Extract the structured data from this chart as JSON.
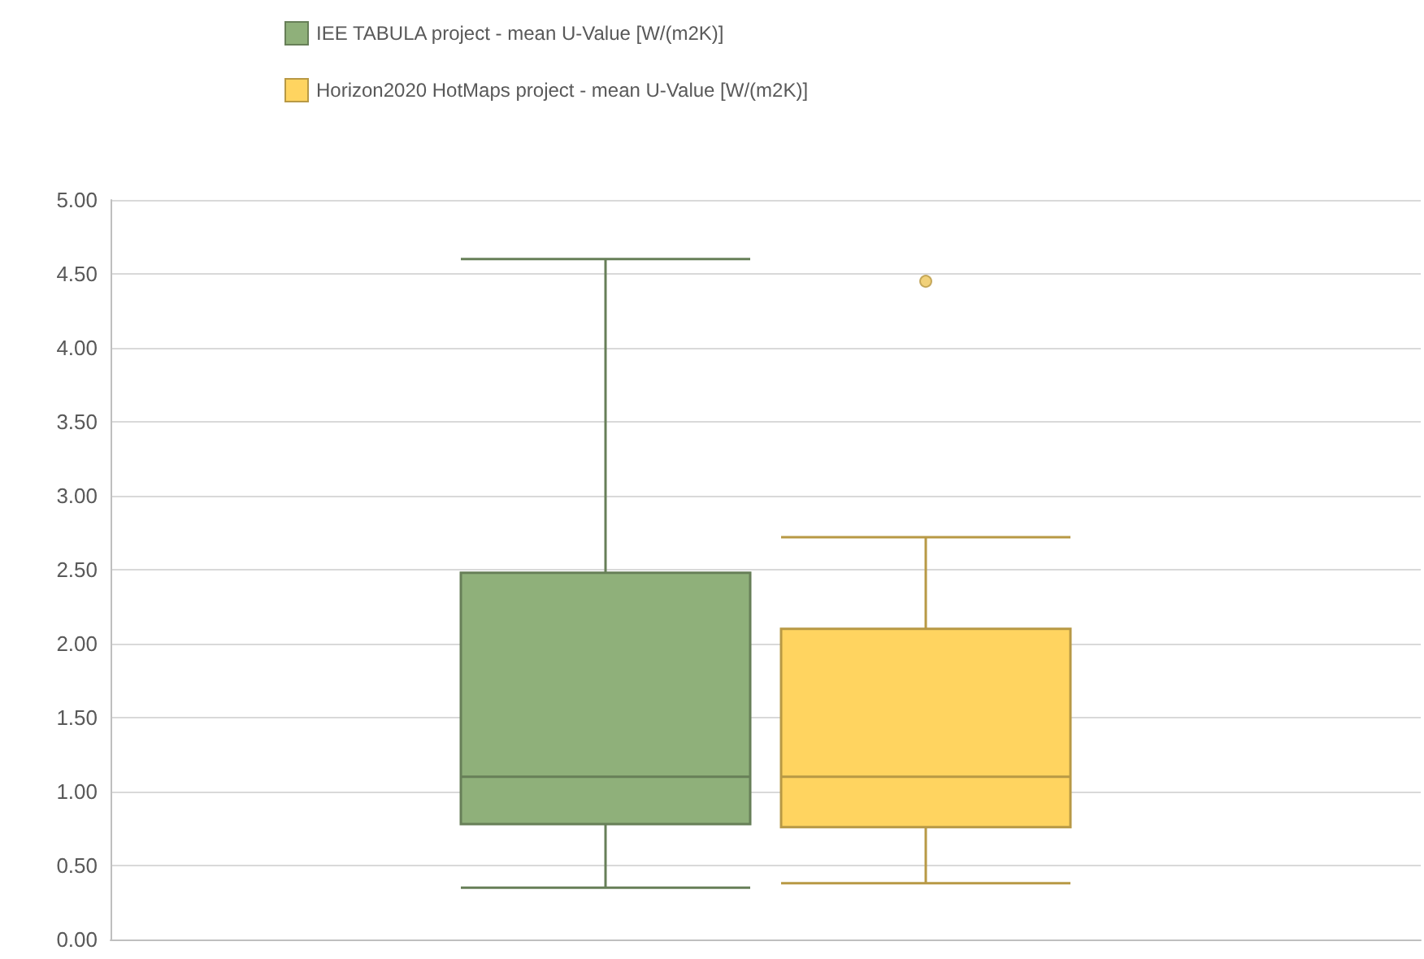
{
  "chart_data": {
    "type": "box",
    "categories": [
      null
    ],
    "series": [
      {
        "name": "IEE TABULA project - mean U-Value [W/(m2K)]",
        "color": "#8fb07a",
        "boxes": [
          {
            "low": 0.35,
            "q1": 0.78,
            "median": 1.1,
            "q3": 2.48,
            "high": 4.6
          }
        ]
      },
      {
        "name": "Horizon2020 HotMaps project - mean U-Value [W/(m2K)]",
        "color": "#ffd460",
        "boxes": [
          {
            "low": 0.38,
            "q1": 0.76,
            "median": 1.1,
            "q3": 2.1,
            "high": 2.72,
            "outliers": [
              4.45
            ]
          }
        ]
      }
    ],
    "ylim": [
      0,
      5
    ],
    "yticks": [
      {
        "value": 0,
        "label": "0.00"
      },
      {
        "value": 0.5,
        "label": "0.50"
      },
      {
        "value": 1,
        "label": "1.00"
      },
      {
        "value": 1.5,
        "label": "1.50"
      },
      {
        "value": 2,
        "label": "2.00"
      },
      {
        "value": 2.5,
        "label": "2.50"
      },
      {
        "value": 3,
        "label": "3.00"
      },
      {
        "value": 3.5,
        "label": "3.50"
      },
      {
        "value": 4,
        "label": "4.00"
      },
      {
        "value": 4.5,
        "label": "4.50"
      },
      {
        "value": 5,
        "label": "5.00"
      }
    ],
    "grid": "y",
    "legend": "top"
  }
}
